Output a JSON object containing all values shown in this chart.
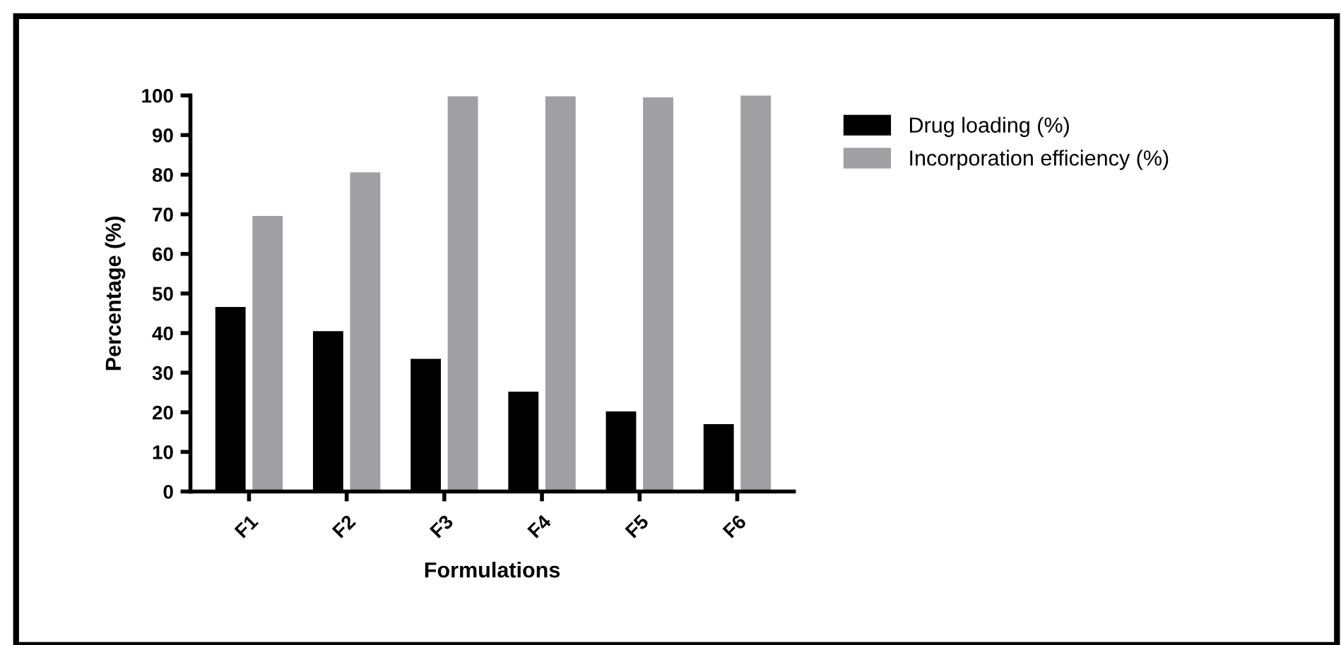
{
  "chart_data": {
    "type": "bar",
    "xlabel": "Formulations",
    "ylabel": "Percentage (%)",
    "categories": [
      "F1",
      "F2",
      "F3",
      "F4",
      "F5",
      "F6"
    ],
    "series": [
      {
        "name": "Drug loading (%)",
        "color": "#000000",
        "values": [
          46.6,
          40.5,
          33.5,
          25.2,
          20.2,
          17.0
        ]
      },
      {
        "name": "Incorporation efficiency (%)",
        "color": "#a0a0a4",
        "values": [
          69.6,
          80.6,
          99.8,
          99.8,
          99.5,
          100
        ]
      }
    ],
    "ylim": [
      0,
      100
    ],
    "yticks": [
      0,
      10,
      20,
      30,
      40,
      50,
      60,
      70,
      80,
      90,
      100
    ],
    "grid": false,
    "legend": "right"
  }
}
